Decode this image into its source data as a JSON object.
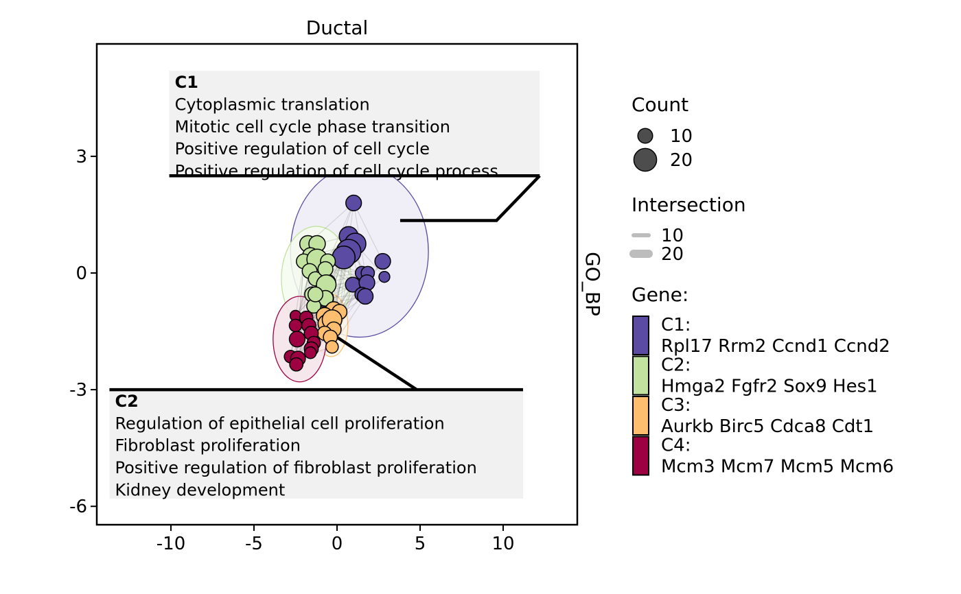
{
  "chart_data": {
    "type": "scatter",
    "title": "Ductal",
    "strip_label": "GO_BP",
    "xlabel": "",
    "ylabel": "",
    "xlim": [
      -14.5,
      14.5
    ],
    "ylim": [
      -6.5,
      5.8
    ],
    "x_ticks": [
      -10,
      -5,
      0,
      5,
      10
    ],
    "y_ticks": [
      -6,
      -3,
      0,
      3
    ],
    "grid": false,
    "legend_position": "right",
    "clusters": [
      {
        "name": "C1",
        "color": "#5B4BA3",
        "fill": "#EDEBF5",
        "genes": "Rpl17 Rrm2 Ccnd1 Ccnd2",
        "terms": [
          "Cytoplasmic translation",
          "Mitotic cell cycle phase transition",
          "Positive regulation of cell cycle",
          "Positive regulation of cell cycle process"
        ],
        "ellipse": {
          "cx": 1.35,
          "cy": 0.55,
          "rx": 4.15,
          "ry": 2.2
        },
        "points": [
          {
            "x": 1.0,
            "y": 1.8,
            "count": 11
          },
          {
            "x": 0.7,
            "y": 0.95,
            "count": 15
          },
          {
            "x": 1.1,
            "y": 0.75,
            "count": 18
          },
          {
            "x": 0.7,
            "y": 0.55,
            "count": 22
          },
          {
            "x": 0.4,
            "y": 0.4,
            "count": 20
          },
          {
            "x": 2.75,
            "y": 0.3,
            "count": 11
          },
          {
            "x": 2.85,
            "y": -0.1,
            "count": 5
          },
          {
            "x": 1.5,
            "y": 0.0,
            "count": 8
          },
          {
            "x": 1.85,
            "y": 0.0,
            "count": 8
          },
          {
            "x": 0.95,
            "y": -0.3,
            "count": 10
          },
          {
            "x": 1.8,
            "y": -0.25,
            "count": 11
          },
          {
            "x": 1.5,
            "y": -0.55,
            "count": 9
          },
          {
            "x": 1.7,
            "y": -0.6,
            "count": 11
          },
          {
            "x": -0.6,
            "y": -0.25,
            "count": 13
          },
          {
            "x": -0.75,
            "y": -0.65,
            "count": 14
          }
        ]
      },
      {
        "name": "C2",
        "color": "#C2E39F",
        "fill": "#F5FBEF",
        "genes": "Hmga2 Fgfr2 Sox9 Hes1",
        "terms": [
          "Regulation of epithelial cell proliferation",
          "Fibroblast proliferation",
          "Positive regulation of fibroblast proliferation",
          "Kidney development"
        ],
        "ellipse": {
          "cx": -1.25,
          "cy": -0.15,
          "rx": 2.1,
          "ry": 1.35
        },
        "points": [
          {
            "x": -1.75,
            "y": 0.75,
            "count": 12
          },
          {
            "x": -1.2,
            "y": 0.75,
            "count": 12
          },
          {
            "x": -1.6,
            "y": 0.45,
            "count": 11
          },
          {
            "x": -2.0,
            "y": 0.3,
            "count": 10
          },
          {
            "x": -1.2,
            "y": 0.35,
            "count": 17
          },
          {
            "x": -0.55,
            "y": 0.3,
            "count": 10
          },
          {
            "x": -1.65,
            "y": 0.05,
            "count": 10
          },
          {
            "x": -1.3,
            "y": -0.15,
            "count": 9
          },
          {
            "x": -0.7,
            "y": 0.1,
            "count": 10
          },
          {
            "x": -1.5,
            "y": -0.55,
            "count": 10
          },
          {
            "x": -0.65,
            "y": -0.3,
            "count": 16
          },
          {
            "x": -0.7,
            "y": -0.65,
            "count": 11
          },
          {
            "x": -1.4,
            "y": -0.85,
            "count": 9
          },
          {
            "x": -1.3,
            "y": -0.55,
            "count": 10
          }
        ]
      },
      {
        "name": "C3",
        "color": "#FDBE6F",
        "fill": "#FEF4E6",
        "genes": "Aurkb Birc5 Cdca8 Cdt1",
        "terms": [],
        "ellipse": {
          "cx": -0.35,
          "cy": -1.35,
          "rx": 1.0,
          "ry": 0.8
        },
        "points": [
          {
            "x": -0.2,
            "y": -0.95,
            "count": 12
          },
          {
            "x": 0.15,
            "y": -1.0,
            "count": 10
          },
          {
            "x": -0.75,
            "y": -1.1,
            "count": 12
          },
          {
            "x": -0.6,
            "y": -1.3,
            "count": 14
          },
          {
            "x": -0.3,
            "y": -1.2,
            "count": 16
          },
          {
            "x": -0.2,
            "y": -1.45,
            "count": 10
          },
          {
            "x": -0.75,
            "y": -1.55,
            "count": 9
          },
          {
            "x": -0.4,
            "y": -1.65,
            "count": 9
          },
          {
            "x": -0.3,
            "y": -1.9,
            "count": 7
          }
        ]
      },
      {
        "name": "C4",
        "color": "#9E0142",
        "fill": "#F4E3EA",
        "genes": "Mcm3 Mcm7 Mcm5 Mcm6",
        "terms": [],
        "ellipse": {
          "cx": -2.25,
          "cy": -1.7,
          "rx": 1.6,
          "ry": 1.1
        },
        "points": [
          {
            "x": -2.5,
            "y": -1.1,
            "count": 5
          },
          {
            "x": -1.85,
            "y": -1.15,
            "count": 8
          },
          {
            "x": -1.7,
            "y": -1.35,
            "count": 9
          },
          {
            "x": -2.5,
            "y": -1.35,
            "count": 7
          },
          {
            "x": -1.55,
            "y": -1.55,
            "count": 9
          },
          {
            "x": -2.4,
            "y": -1.7,
            "count": 11
          },
          {
            "x": -1.4,
            "y": -1.8,
            "count": 8
          },
          {
            "x": -1.55,
            "y": -1.95,
            "count": 9
          },
          {
            "x": -2.8,
            "y": -2.15,
            "count": 7
          },
          {
            "x": -2.35,
            "y": -2.2,
            "count": 10
          },
          {
            "x": -2.45,
            "y": -2.35,
            "count": 8
          },
          {
            "x": -1.6,
            "y": -2.05,
            "count": 6
          }
        ]
      }
    ],
    "annotations": [
      {
        "cluster": "C1",
        "box": {
          "x0": -10.1,
          "x1": 12.2,
          "y0": 2.5,
          "y1": 5.2
        },
        "leader": [
          [
            12.2,
            2.5
          ],
          [
            9.6,
            1.35
          ],
          [
            3.8,
            1.35
          ]
        ]
      },
      {
        "cluster": "C2",
        "box": {
          "x0": -13.7,
          "x1": 11.2,
          "y0": -5.8,
          "y1": -3.0
        },
        "leader": [
          [
            -0.9,
            -1.4
          ],
          [
            4.8,
            -3.0
          ]
        ]
      }
    ],
    "legend": {
      "count_title": "Count",
      "count_items": [
        {
          "label": "10",
          "value": 10
        },
        {
          "label": "20",
          "value": 20
        }
      ],
      "intersection_title": "Intersection",
      "intersection_items": [
        {
          "label": "10"
        },
        {
          "label": "20"
        }
      ],
      "gene_title": "Gene:"
    }
  }
}
